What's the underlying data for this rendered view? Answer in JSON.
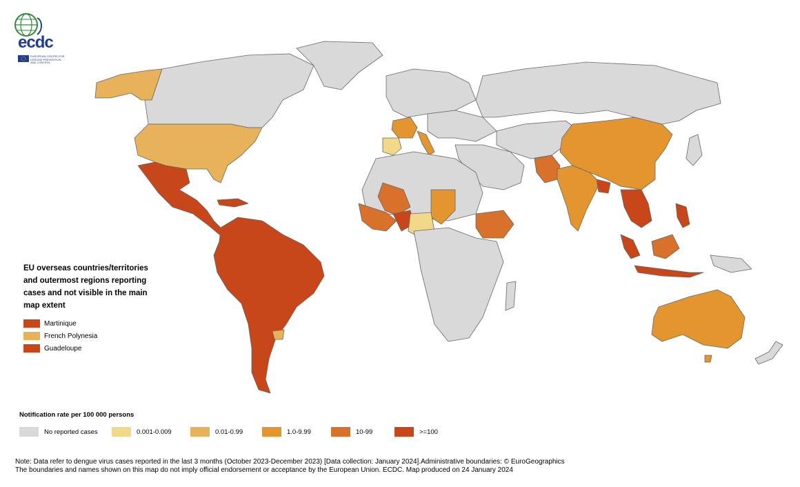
{
  "logo": {
    "wordmark": "ecdc",
    "subtitle": "EUROPEAN CENTRE FOR DISEASE PREVENTION AND CONTROL",
    "icon": "ecdc-globe-icon"
  },
  "overseas_panel": {
    "title": "EU overseas countries/territories and outermost regions reporting cases and not visible in the main map extent",
    "items": [
      {
        "label": "Martinique",
        "color": "#c8471a"
      },
      {
        "label": "French Polynesia",
        "color": "#e8b25a"
      },
      {
        "label": "Guadeloupe",
        "color": "#c8471a"
      }
    ]
  },
  "legend": {
    "title": "Notification rate per 100 000 persons",
    "items": [
      {
        "label": "No reported cases",
        "color": "#d9d9d9"
      },
      {
        "label": "0.001-0.009",
        "color": "#f2d98a"
      },
      {
        "label": "0.01-0.99",
        "color": "#e8b25a"
      },
      {
        "label": "1.0-9.99",
        "color": "#e3962f"
      },
      {
        "label": "10-99",
        "color": "#d8712a"
      },
      {
        "label": ">=100",
        "color": "#c8471a"
      }
    ]
  },
  "note": {
    "line1": "Note: Data refer to dengue virus cases reported in the last 3 months (October 2023-December 2023) [Data collection: January 2024].Administrative boundaries: © EuroGeographics",
    "line2": "The boundaries and names shown on this map do not imply official endorsement or acceptance by the European Union. ECDC. Map produced on 24 January 2024"
  },
  "colors": {
    "land_default": "#d9d9d9",
    "border": "#666666",
    "background": "#ffffff"
  }
}
